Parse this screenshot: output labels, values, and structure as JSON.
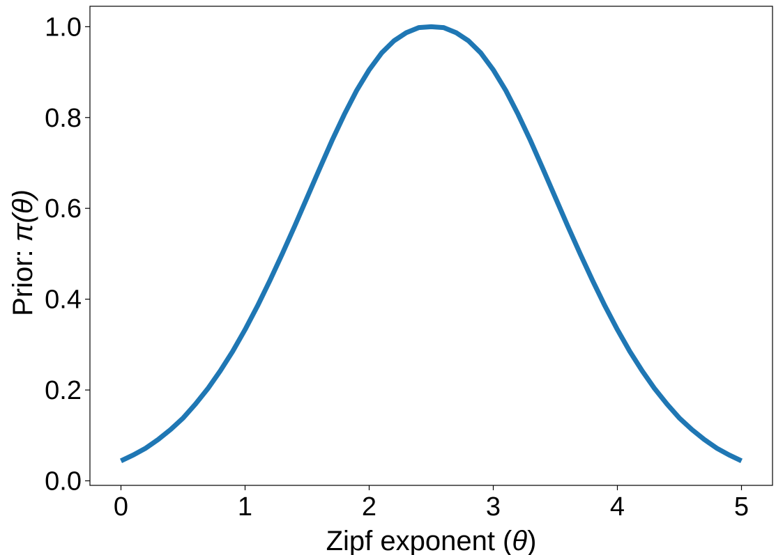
{
  "chart_data": {
    "type": "line",
    "title": "",
    "xlabel_text": "Zipf exponent (",
    "xlabel_symbol": "θ",
    "xlabel_close": ")",
    "ylabel_text": "Prior: ",
    "ylabel_symbol": "π(θ)",
    "xlim": [
      -0.25,
      5.25
    ],
    "ylim": [
      -0.01,
      1.045
    ],
    "xticks": [
      0,
      1,
      2,
      3,
      4,
      5
    ],
    "xtick_labels": [
      "0",
      "1",
      "2",
      "3",
      "4",
      "5"
    ],
    "yticks": [
      0.0,
      0.2,
      0.4,
      0.6,
      0.8,
      1.0
    ],
    "ytick_labels": [
      "0.0",
      "0.2",
      "0.4",
      "0.6",
      "0.8",
      "1.0"
    ],
    "grid": false,
    "series": [
      {
        "color": "#1f77b4",
        "x": [
          0.0,
          0.1,
          0.2,
          0.3,
          0.4,
          0.5,
          0.6,
          0.7,
          0.8,
          0.9,
          1.0,
          1.1,
          1.2,
          1.3,
          1.4,
          1.5,
          1.6,
          1.7,
          1.8,
          1.9,
          2.0,
          2.1,
          2.2,
          2.3,
          2.4,
          2.5,
          2.6,
          2.7,
          2.8,
          2.9,
          3.0,
          3.1,
          3.2,
          3.3,
          3.4,
          3.5,
          3.6,
          3.7,
          3.8,
          3.9,
          4.0,
          4.1,
          4.2,
          4.3,
          4.4,
          4.5,
          4.6,
          4.7,
          4.8,
          4.9,
          5.0
        ],
        "y": [
          0.044,
          0.057,
          0.072,
          0.091,
          0.113,
          0.138,
          0.169,
          0.203,
          0.242,
          0.285,
          0.333,
          0.385,
          0.441,
          0.5,
          0.561,
          0.624,
          0.687,
          0.749,
          0.807,
          0.86,
          0.905,
          0.942,
          0.969,
          0.987,
          0.998,
          1.0,
          0.998,
          0.987,
          0.969,
          0.942,
          0.905,
          0.86,
          0.807,
          0.749,
          0.687,
          0.624,
          0.561,
          0.5,
          0.441,
          0.385,
          0.333,
          0.285,
          0.242,
          0.203,
          0.169,
          0.138,
          0.113,
          0.091,
          0.072,
          0.057,
          0.044
        ]
      }
    ]
  }
}
